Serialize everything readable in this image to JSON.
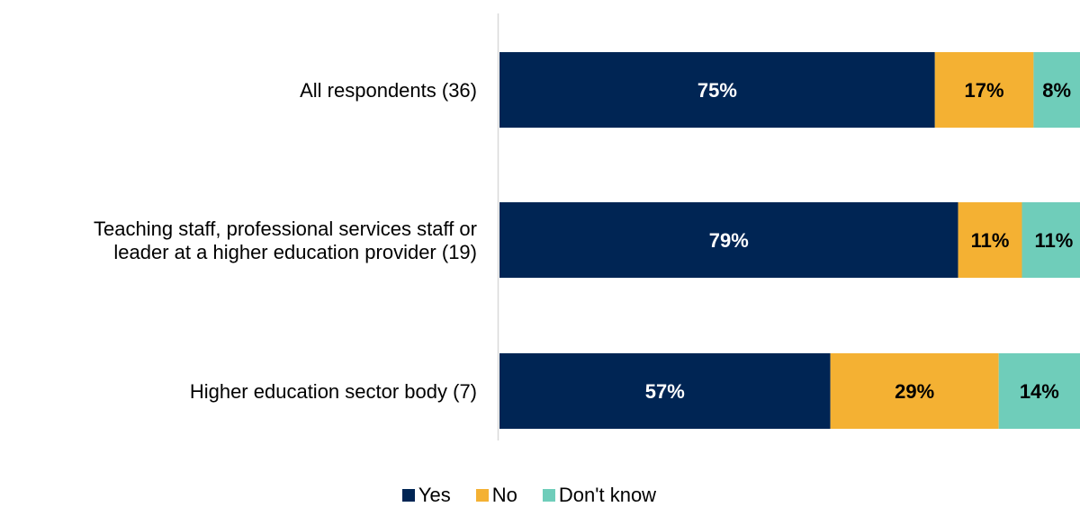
{
  "chart_data": {
    "type": "bar",
    "orientation": "horizontal",
    "stacked": true,
    "categories": [
      "All respondents (36)",
      "Teaching staff, professional services staff or leader at a higher education provider (19)",
      "Higher education sector body (7)"
    ],
    "category_lines": [
      [
        "All respondents (36)"
      ],
      [
        "Teaching staff, professional services staff or",
        "leader at a higher education provider (19)"
      ],
      [
        "Higher education sector body (7)"
      ]
    ],
    "series": [
      {
        "name": "Yes",
        "color": "#002554",
        "label_color": "#ffffff",
        "values": [
          75,
          79,
          57
        ],
        "labels": [
          "75%",
          "79%",
          "57%"
        ]
      },
      {
        "name": "No",
        "color": "#F4B133",
        "label_color": "#000000",
        "values": [
          17,
          11,
          29
        ],
        "labels": [
          "17%",
          "11%",
          "29%"
        ]
      },
      {
        "name": "Don't know",
        "color": "#6FCDBA",
        "label_color": "#000000",
        "values": [
          8,
          11,
          14
        ],
        "labels": [
          "8%",
          "11%",
          "14%"
        ]
      }
    ],
    "xlim": [
      0,
      100
    ],
    "grid": false,
    "legend_position": "bottom"
  }
}
